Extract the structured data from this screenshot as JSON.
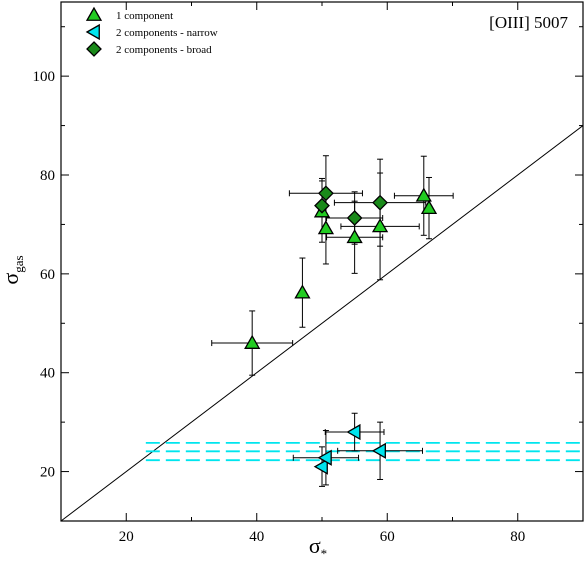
{
  "chart_data": {
    "type": "scatter",
    "annotation": "[OIII] 5007",
    "xlabel": {
      "symbol": "σ",
      "sub": "*"
    },
    "ylabel": {
      "symbol": "σ",
      "sub": "gas"
    },
    "xlim": [
      10,
      90
    ],
    "ylim": [
      10,
      115
    ],
    "xticks": [
      "20",
      "40",
      "60",
      "80"
    ],
    "yticks": [
      "20",
      "40",
      "60",
      "80",
      "100"
    ],
    "grid": false,
    "legend_position": "top-left",
    "reference_line": {
      "x": [
        10,
        90
      ],
      "y": [
        10,
        90
      ]
    },
    "horizontal_lines": {
      "color": "#00e5ee",
      "style": "dashed",
      "x_range": [
        23,
        90
      ],
      "y": [
        22.3,
        24.1,
        25.8
      ]
    },
    "series": [
      {
        "name": "1 component",
        "marker": "triangle-up",
        "color": "#22cc22",
        "points": [
          {
            "x": 39.3,
            "y": 46.0,
            "xerr": 6.2,
            "yerr": 6.5
          },
          {
            "x": 47.0,
            "y": 56.2,
            "xerr": 0,
            "yerr": 7.0
          },
          {
            "x": 50.6,
            "y": 69.2,
            "xerr": 0,
            "yerr": 7.2
          },
          {
            "x": 55.0,
            "y": 67.4,
            "xerr": 4.3,
            "yerr": 7.3
          },
          {
            "x": 58.9,
            "y": 69.6,
            "xerr": 6.0,
            "yerr": 10.8
          },
          {
            "x": 65.6,
            "y": 75.8,
            "xerr": 4.5,
            "yerr": 8.0
          },
          {
            "x": 66.4,
            "y": 73.3,
            "xerr": 0,
            "yerr": 6.2
          },
          {
            "x": 50.0,
            "y": 72.6,
            "xerr": 0,
            "yerr": 6.2
          }
        ]
      },
      {
        "name": "2 components - narrow",
        "marker": "triangle-left",
        "color": "#00e5ee",
        "points": [
          {
            "x": 50.0,
            "y": 21.0,
            "xerr": 0,
            "yerr": 4.0
          },
          {
            "x": 50.6,
            "y": 22.8,
            "xerr": 5.0,
            "yerr": 5.5
          },
          {
            "x": 55.0,
            "y": 28.0,
            "xerr": 4.5,
            "yerr": 3.8
          },
          {
            "x": 58.9,
            "y": 24.2,
            "xerr": 6.5,
            "yerr": 5.8
          }
        ]
      },
      {
        "name": "2 components - broad",
        "marker": "diamond",
        "color": "#1a8a1a",
        "points": [
          {
            "x": 50.0,
            "y": 73.8,
            "xerr": 0,
            "yerr": 5.5
          },
          {
            "x": 50.6,
            "y": 76.3,
            "xerr": 5.6,
            "yerr": 7.6
          },
          {
            "x": 55.0,
            "y": 71.3,
            "xerr": 4.3,
            "yerr": 5.3
          },
          {
            "x": 58.9,
            "y": 74.4,
            "xerr": 7.0,
            "yerr": 8.8
          }
        ]
      }
    ]
  }
}
